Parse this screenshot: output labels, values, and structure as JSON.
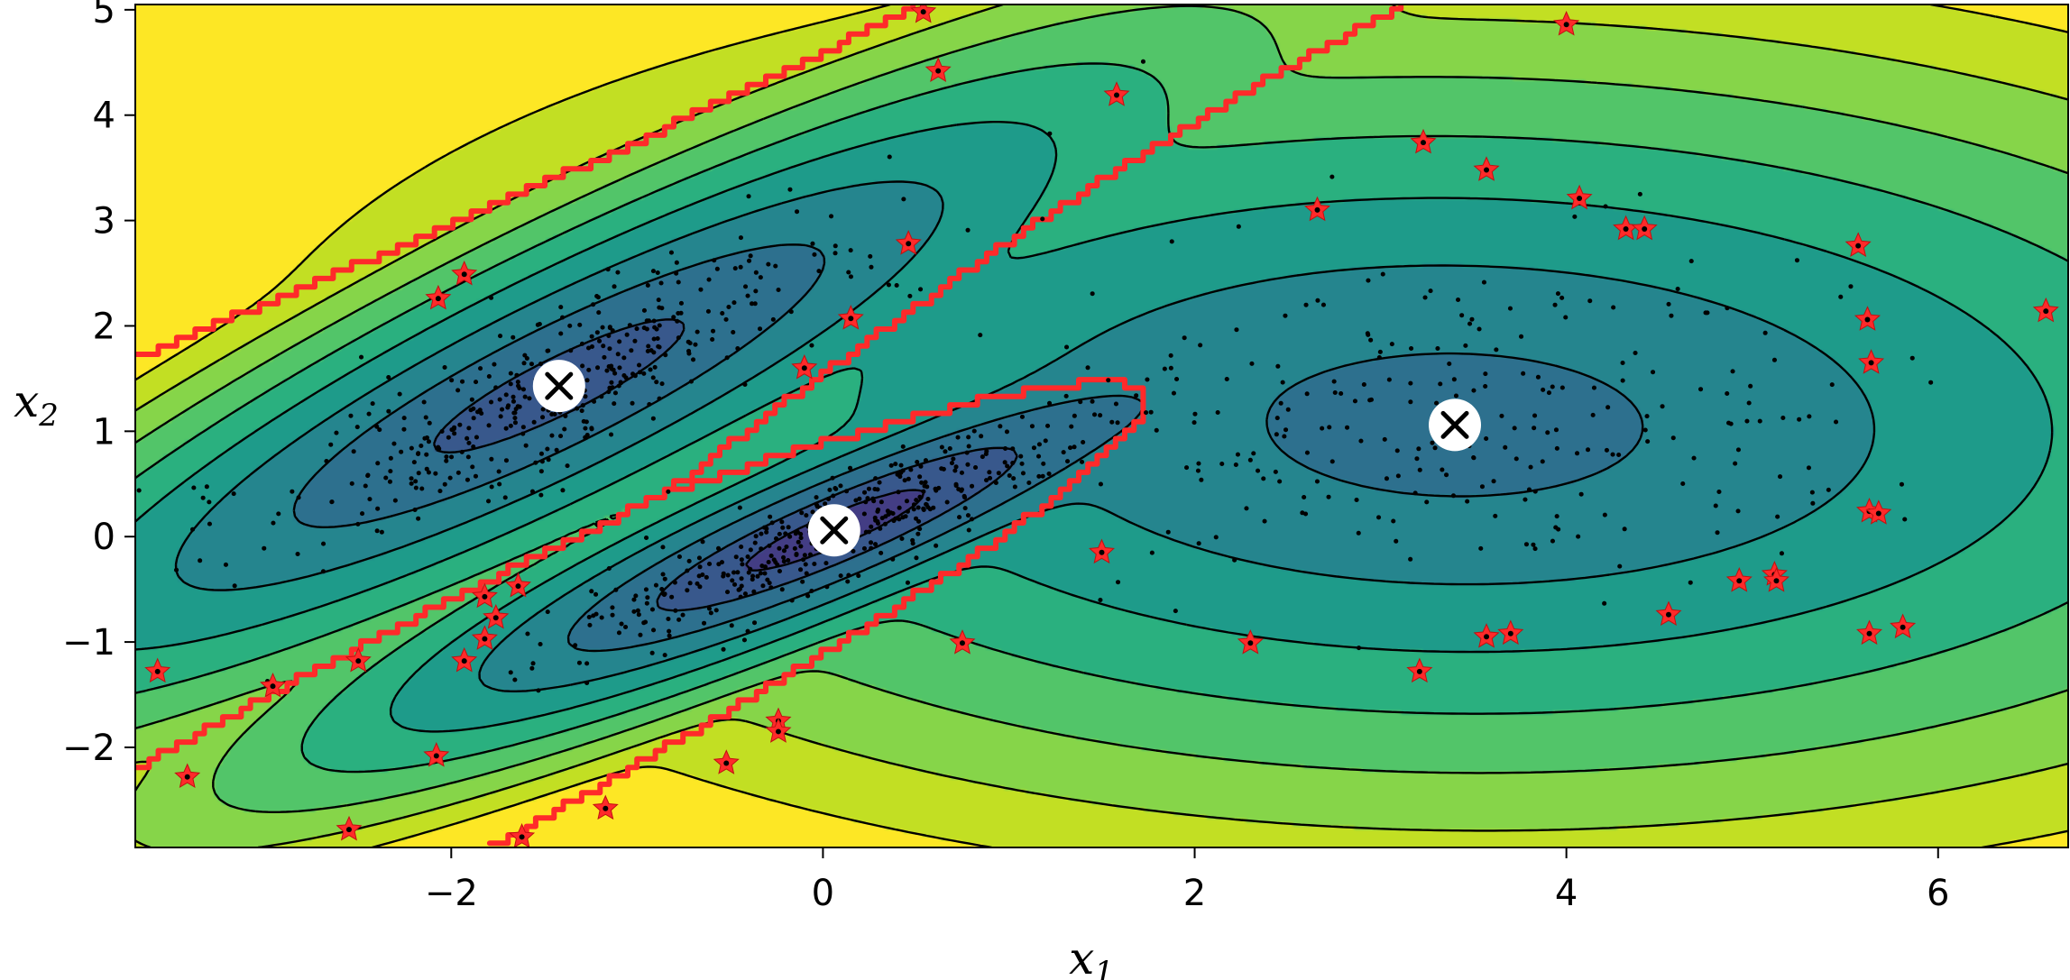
{
  "chart_data": {
    "type": "contour",
    "title": "",
    "xlabel": "x",
    "xlabel_sub": "1",
    "ylabel": "x",
    "ylabel_sub": "2",
    "xlim": [
      -3.7,
      6.7
    ],
    "ylim": [
      -2.95,
      5.05
    ],
    "xticks": [
      -2,
      0,
      2,
      4,
      6
    ],
    "yticks": [
      -2,
      -1,
      0,
      1,
      2,
      3,
      4,
      5
    ],
    "grid": false,
    "colors": {
      "level_colors": [
        "#433d84",
        "#38588c",
        "#2d708e",
        "#25858e",
        "#1e9b8a",
        "#2ab07f",
        "#52c569",
        "#86d549",
        "#c2df23",
        "#fde725"
      ],
      "contour_line": "#000000",
      "decision_boundary": "#ff2a2a",
      "anomaly_star": "#ff2a2a",
      "centroid_fill": "#ffffff",
      "centroid_cross": "#000000"
    },
    "components": [
      {
        "mean": [
          -1.42,
          1.43
        ],
        "sx": 1.13,
        "sy": 0.28,
        "angle_deg": 43
      },
      {
        "mean": [
          0.06,
          0.06
        ],
        "sx": 0.9,
        "sy": 0.2,
        "angle_deg": 38
      },
      {
        "mean": [
          3.4,
          1.06
        ],
        "sx": 1.15,
        "sy": 0.77,
        "angle_deg": -2
      }
    ],
    "centroids": [
      {
        "x": -1.42,
        "y": 1.43
      },
      {
        "x": 0.06,
        "y": 0.06
      },
      {
        "x": 3.4,
        "y": 1.06
      }
    ],
    "anomalies": [
      [
        0.54,
        4.98
      ],
      [
        0.62,
        4.42
      ],
      [
        1.58,
        4.19
      ],
      [
        4.0,
        4.86
      ],
      [
        3.23,
        3.74
      ],
      [
        3.57,
        3.48
      ],
      [
        4.07,
        3.21
      ],
      [
        2.66,
        3.1
      ],
      [
        4.32,
        2.92
      ],
      [
        4.42,
        2.92
      ],
      [
        5.57,
        2.76
      ],
      [
        5.62,
        2.06
      ],
      [
        5.64,
        1.65
      ],
      [
        6.58,
        2.14
      ],
      [
        0.46,
        2.78
      ],
      [
        0.15,
        2.07
      ],
      [
        -0.1,
        1.6
      ],
      [
        -2.07,
        2.26
      ],
      [
        -1.93,
        2.49
      ],
      [
        -1.82,
        -0.57
      ],
      [
        -1.76,
        -0.77
      ],
      [
        -1.82,
        -0.97
      ],
      [
        -1.64,
        -0.47
      ],
      [
        -1.93,
        -1.18
      ],
      [
        -2.5,
        -1.18
      ],
      [
        -2.96,
        -1.42
      ],
      [
        -3.58,
        -1.28
      ],
      [
        -3.42,
        -2.28
      ],
      [
        -2.08,
        -2.08
      ],
      [
        -2.55,
        -2.78
      ],
      [
        -1.62,
        -2.85
      ],
      [
        -1.17,
        -2.58
      ],
      [
        -0.52,
        -2.15
      ],
      [
        -0.24,
        -1.75
      ],
      [
        -0.24,
        -1.85
      ],
      [
        0.75,
        -1.01
      ],
      [
        1.5,
        -0.15
      ],
      [
        2.3,
        -1.01
      ],
      [
        3.21,
        -1.28
      ],
      [
        3.57,
        -0.95
      ],
      [
        3.7,
        -0.92
      ],
      [
        4.55,
        -0.74
      ],
      [
        4.93,
        -0.42
      ],
      [
        5.12,
        -0.36
      ],
      [
        5.13,
        -0.42
      ],
      [
        5.63,
        0.24
      ],
      [
        5.68,
        0.22
      ],
      [
        5.63,
        -0.92
      ],
      [
        5.81,
        -0.86
      ]
    ]
  }
}
